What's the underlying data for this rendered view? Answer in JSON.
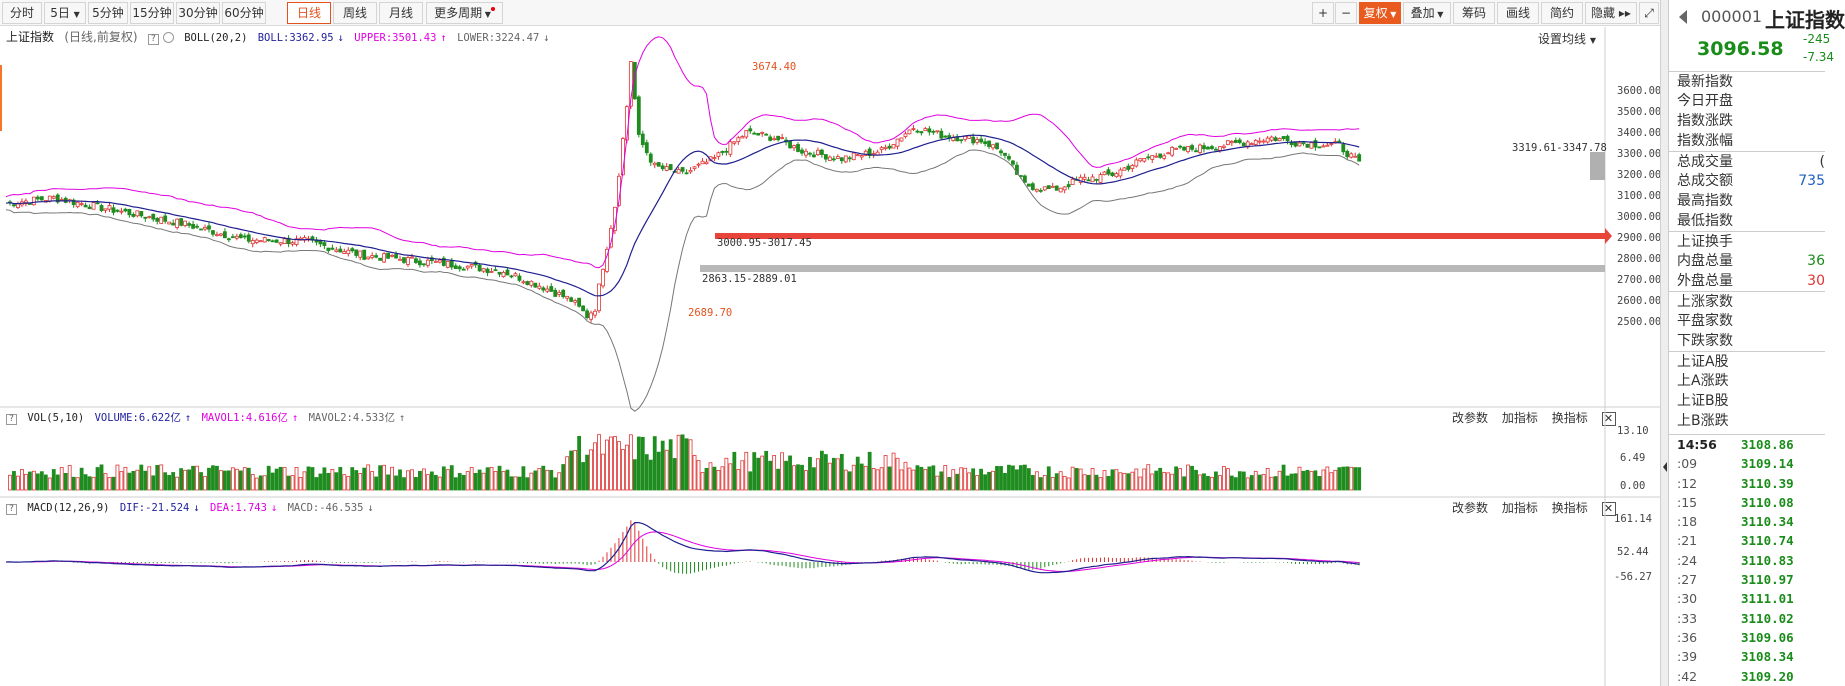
{
  "toolbar": {
    "periods": [
      "分时",
      "5日",
      "5分钟",
      "15分钟",
      "30分钟",
      "60分钟",
      "日线",
      "周线",
      "月线",
      "更多周期"
    ],
    "active_period": "日线",
    "right_buttons": [
      "+",
      "−",
      "复权",
      "叠加",
      "筹码",
      "画线",
      "简约",
      "隐藏"
    ]
  },
  "main_panel": {
    "title": "上证指数",
    "subtitle": "(日线,前复权)",
    "indicator": "BOLL(20,2)",
    "boll": "BOLL:3362.95",
    "upper": "UPPER:3501.43",
    "lower": "LOWER:3224.47",
    "set_ma": "设置均线",
    "y_ticks": [
      "3600.00",
      "3500.00",
      "3400.00",
      "3300.00",
      "3200.00",
      "3100.00",
      "3000.00",
      "2900.00",
      "2800.00",
      "2700.00",
      "2600.00",
      "2500.00"
    ],
    "annotations": {
      "high": "3674.40",
      "low": "2689.70",
      "gap_upper": "3000.95-3017.45",
      "gap_lower": "2863.15-2889.01",
      "gap_right": "3319.61-3347.78"
    }
  },
  "vol_panel": {
    "name": "VOL(5,10)",
    "volume": "VOLUME:6.622亿",
    "mavol1": "MAVOL1:4.616亿",
    "mavol2": "MAVOL2:4.533亿",
    "ops": [
      "改参数",
      "加指标",
      "换指标"
    ],
    "y_ticks": [
      "13.10",
      "6.49",
      "0.00"
    ]
  },
  "macd_panel": {
    "name": "MACD(12,26,9)",
    "dif": "DIF:-21.524",
    "dea": "DEA:1.743",
    "macd": "MACD:-46.535",
    "ops": [
      "改参数",
      "加指标",
      "换指标"
    ],
    "y_ticks": [
      "161.14",
      "52.44",
      "-56.27"
    ]
  },
  "sidebar": {
    "code": "000001",
    "name": "上证指数",
    "price": "3096.58",
    "change": "-245",
    "change_pct": "-7.34",
    "rows": [
      {
        "label": "最新指数",
        "value": ""
      },
      {
        "label": "今日开盘",
        "value": ""
      },
      {
        "label": "指数涨跌",
        "value": ""
      },
      {
        "label": "指数涨幅",
        "value": ""
      },
      {
        "label": "总成交量",
        "value": "("
      },
      {
        "label": "总成交额",
        "value": "735"
      },
      {
        "label": "最高指数",
        "value": ""
      },
      {
        "label": "最低指数",
        "value": ""
      },
      {
        "label": "上证换手",
        "value": ""
      },
      {
        "label": "内盘总量",
        "value": "36"
      },
      {
        "label": "外盘总量",
        "value": "30"
      },
      {
        "label": "上涨家数",
        "value": ""
      },
      {
        "label": "平盘家数",
        "value": ""
      },
      {
        "label": "下跌家数",
        "value": ""
      },
      {
        "label": "上证A股",
        "value": ""
      },
      {
        "label": "上A涨跌",
        "value": ""
      },
      {
        "label": "上证B股",
        "value": ""
      },
      {
        "label": "上B涨跌",
        "value": ""
      }
    ],
    "ticks": [
      {
        "time": "14:56",
        "price": "3108.86"
      },
      {
        "time": ":09",
        "price": "3109.14"
      },
      {
        "time": ":12",
        "price": "3110.39"
      },
      {
        "time": ":15",
        "price": "3110.08"
      },
      {
        "time": ":18",
        "price": "3110.34"
      },
      {
        "time": ":21",
        "price": "3110.74"
      },
      {
        "time": ":24",
        "price": "3110.83"
      },
      {
        "time": ":27",
        "price": "3110.97"
      },
      {
        "time": ":30",
        "price": "3111.01"
      },
      {
        "time": ":33",
        "price": "3110.02"
      },
      {
        "time": ":36",
        "price": "3109.06"
      },
      {
        "time": ":39",
        "price": "3108.34"
      },
      {
        "time": ":42",
        "price": "3109.20"
      }
    ]
  },
  "colors": {
    "up": "#e03434",
    "down": "#1f8c1f",
    "upper_band": "#e000e0",
    "mid_band": "#1f1f8f",
    "lower_band": "#777777",
    "accent": "#e3521d"
  }
}
